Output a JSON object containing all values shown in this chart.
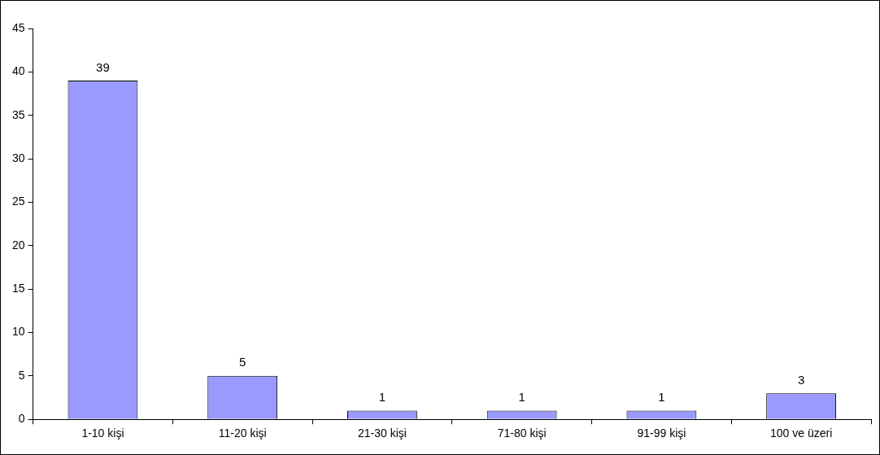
{
  "chart_data": {
    "type": "bar",
    "categories": [
      "1-10 kişi",
      "11-20 kişi",
      "21-30 kişi",
      "71-80 kişi",
      "91-99 kişi",
      "100 ve üzeri"
    ],
    "values": [
      39,
      5,
      1,
      1,
      1,
      3
    ],
    "color": "#9999ff",
    "ylim": [
      0,
      45
    ],
    "yticks": [
      0,
      5,
      10,
      15,
      20,
      25,
      30,
      35,
      40,
      45
    ],
    "grid": false,
    "legend": false,
    "data_labels": true
  }
}
